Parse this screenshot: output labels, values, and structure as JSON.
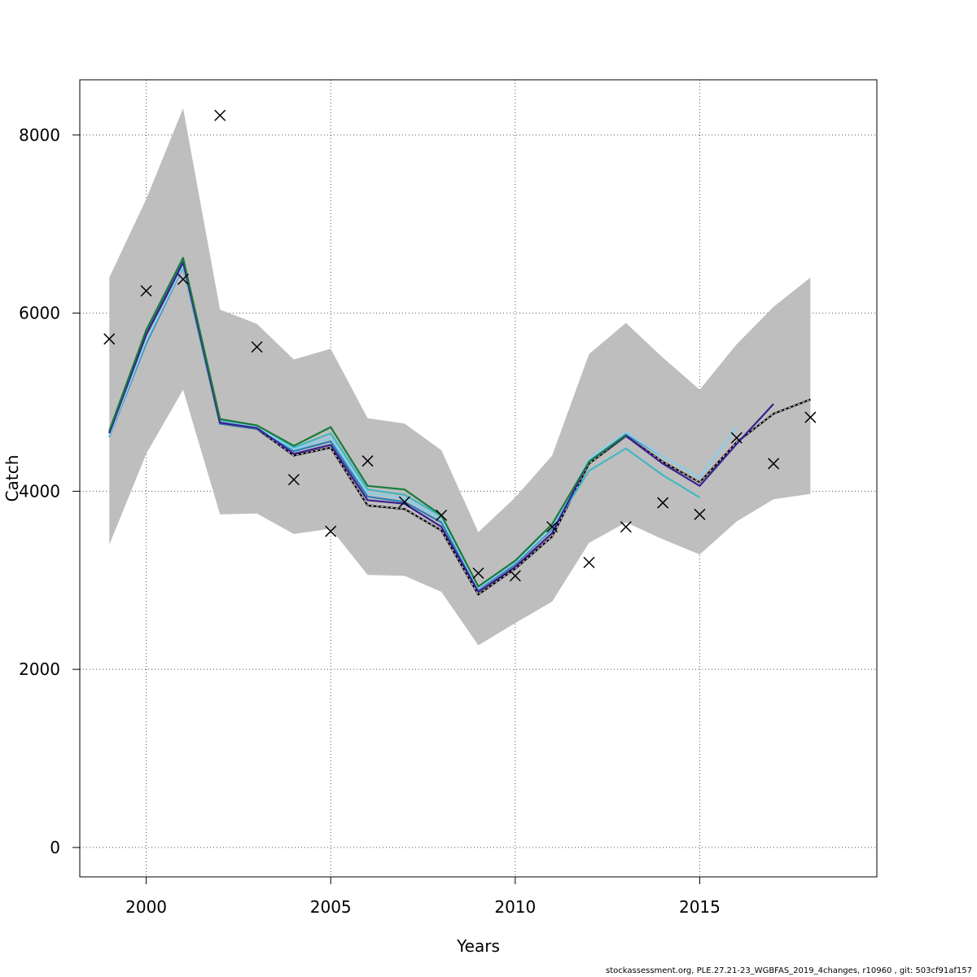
{
  "footer": "stockassessment.org, PLE.27.21-23_WGBFAS_2019_4changes, r10960 , git: 503cf91af157",
  "chart_data": {
    "type": "line",
    "title": "",
    "xlabel": "Years",
    "ylabel": "Catch",
    "xlim": [
      1998.2,
      2019.8
    ],
    "ylim": [
      -330,
      8620
    ],
    "x_ticks": [
      2000,
      2005,
      2010,
      2015
    ],
    "y_ticks": [
      0,
      2000,
      4000,
      6000,
      8000
    ],
    "grid": true,
    "legend": "none",
    "confidence_band": {
      "color": "#bebebe",
      "x": [
        1999,
        2000,
        2001,
        2002,
        2003,
        2004,
        2005,
        2006,
        2007,
        2008,
        2009,
        2010,
        2011,
        2012,
        2013,
        2014,
        2015,
        2016,
        2017,
        2018
      ],
      "upper": [
        6400,
        7280,
        8300,
        6040,
        5880,
        5480,
        5600,
        4820,
        4760,
        4460,
        3540,
        3930,
        4400,
        5540,
        5890,
        5500,
        5140,
        5650,
        6070,
        6400
      ],
      "lower": [
        3400,
        4420,
        5140,
        3740,
        3750,
        3520,
        3580,
        3060,
        3050,
        2870,
        2270,
        2520,
        2760,
        3420,
        3650,
        3460,
        3290,
        3660,
        3910,
        3970
      ]
    },
    "observed": {
      "marker": "x",
      "x": [
        1999,
        2000,
        2001,
        2002,
        2003,
        2004,
        2005,
        2006,
        2007,
        2008,
        2009,
        2010,
        2011,
        2012,
        2013,
        2014,
        2015,
        2016,
        2017,
        2018
      ],
      "y": [
        5710,
        6250,
        6380,
        8220,
        5620,
        4130,
        3550,
        4340,
        3880,
        3730,
        3080,
        3050,
        3600,
        3200,
        3600,
        3870,
        3740,
        4600,
        4310,
        4830
      ]
    },
    "series": [
      {
        "color": "#000000",
        "dashed_overlay": true,
        "x": [
          1999,
          2000,
          2001,
          2002,
          2003,
          2004,
          2005,
          2006,
          2007,
          2008,
          2009,
          2010,
          2011,
          2012,
          2013,
          2014,
          2015,
          2016,
          2017,
          2018
        ],
        "y": [
          4660,
          5760,
          6560,
          4760,
          4700,
          4400,
          4490,
          3840,
          3800,
          3560,
          2840,
          3130,
          3490,
          4310,
          4620,
          4330,
          4100,
          4550,
          4870,
          5030
        ]
      },
      {
        "color": "#41b6c4",
        "x": [
          1999,
          2000,
          2001,
          2002,
          2003,
          2004,
          2005,
          2006,
          2007,
          2008,
          2009,
          2010,
          2011,
          2012,
          2013,
          2014,
          2015
        ],
        "y": [
          4650,
          5800,
          6600,
          4800,
          4720,
          4490,
          4650,
          4020,
          3960,
          3720,
          2910,
          3200,
          3570,
          4230,
          4480,
          4180,
          3930
        ]
      },
      {
        "color": "#2c7fb8",
        "x": [
          1999,
          2000,
          2001,
          2002,
          2003,
          2004,
          2005,
          2006,
          2007,
          2008,
          2009,
          2010,
          2011,
          2012,
          2013,
          2014
        ],
        "y": [
          4610,
          5660,
          6520,
          4760,
          4700,
          4450,
          4560,
          3940,
          3880,
          3650,
          2900,
          3180,
          3580,
          4350,
          4640,
          4390
        ]
      },
      {
        "color": "#87ceeb",
        "x": [
          1999,
          2000,
          2001,
          2002,
          2003,
          2004,
          2005,
          2006,
          2007,
          2008,
          2009,
          2010,
          2011,
          2012,
          2013,
          2014,
          2015,
          2016
        ],
        "y": [
          4620,
          5690,
          6530,
          4780,
          4720,
          4470,
          4600,
          3980,
          3920,
          3690,
          2910,
          3200,
          3590,
          4360,
          4660,
          4390,
          4150,
          4720
        ]
      },
      {
        "color": "#3a1f8f",
        "x": [
          1999,
          2000,
          2001,
          2002,
          2003,
          2004,
          2005,
          2006,
          2007,
          2008,
          2009,
          2010,
          2011,
          2012,
          2013,
          2014,
          2015,
          2016,
          2017
        ],
        "y": [
          4650,
          5760,
          6570,
          4770,
          4710,
          4420,
          4520,
          3900,
          3860,
          3600,
          2870,
          3150,
          3530,
          4330,
          4620,
          4310,
          4060,
          4530,
          4980
        ]
      },
      {
        "color": "#1a7a3a",
        "x": [
          1999,
          2000,
          2001,
          2002,
          2003,
          2004,
          2005,
          2006,
          2007,
          2008,
          2009,
          2010,
          2011,
          2012,
          2013
        ],
        "y": [
          4680,
          5810,
          6620,
          4810,
          4740,
          4510,
          4720,
          4060,
          4020,
          3730,
          2930,
          3220,
          3630,
          4330,
          4630
        ]
      }
    ]
  }
}
